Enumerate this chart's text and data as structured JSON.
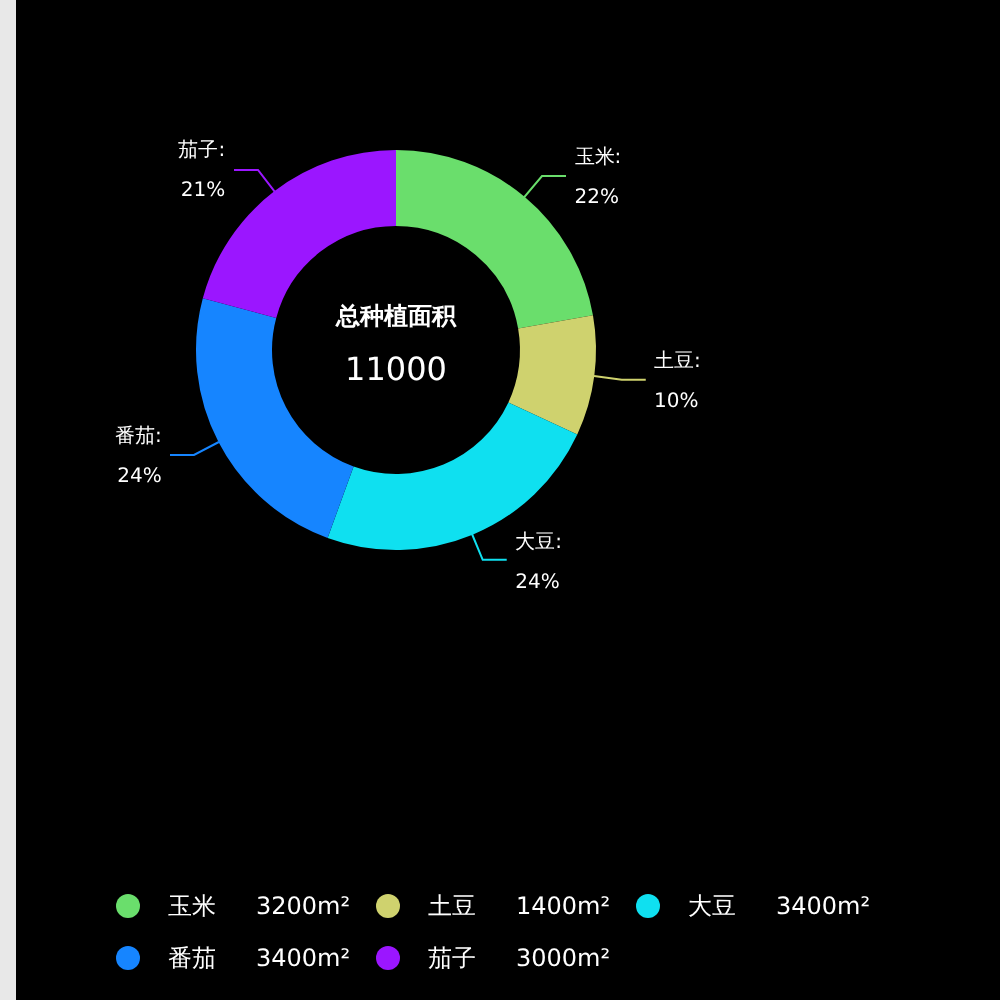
{
  "chart_data": {
    "type": "donut",
    "title": "总种植面积",
    "subtitle": "11000",
    "categories": [
      "玉米",
      "土豆",
      "大豆",
      "番茄",
      "茄子"
    ],
    "values": [
      3200,
      1400,
      3400,
      3400,
      3000
    ],
    "value_labels": [
      "3200m²",
      "1400m²",
      "3400m²",
      "3400m²",
      "3000m²"
    ],
    "colors": [
      "#6ade6c",
      "#cfd26e",
      "#0fe0f0",
      "#1685ff",
      "#9b16ff"
    ],
    "annotations": [
      {
        "text": "玉米:",
        "x": "玉米"
      },
      {
        "text": "22%",
        "x": "玉米"
      },
      {
        "text": "土豆:",
        "x": "土豆"
      },
      {
        "text": "10%",
        "x": "土豆"
      },
      {
        "text": "大豆:",
        "x": "大豆"
      },
      {
        "text": "24%",
        "x": "大豆"
      },
      {
        "text": "番茄:",
        "x": "番茄"
      },
      {
        "text": "24%",
        "x": "番茄"
      },
      {
        "text": "茄子:",
        "x": "茄子"
      },
      {
        "text": "21%",
        "x": "茄子"
      }
    ],
    "legend": "bottom"
  }
}
